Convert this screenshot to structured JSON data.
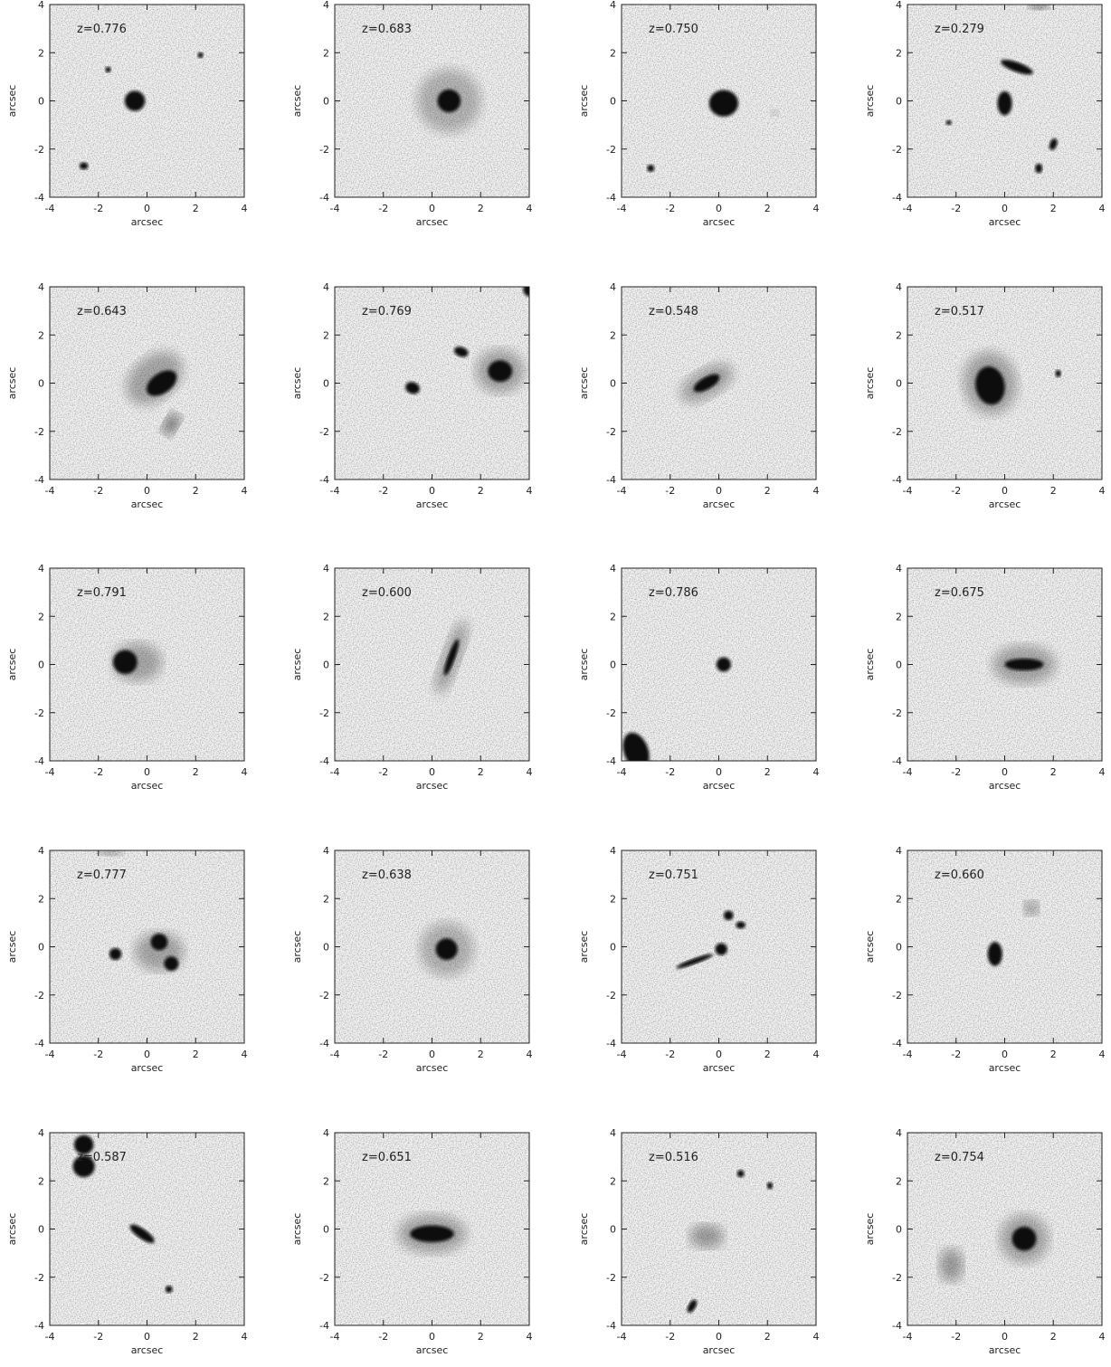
{
  "chart_data": [
    {
      "type": "image",
      "annotation": "z=0.776",
      "xlabel": "arcsec",
      "ylabel": "arcsec",
      "xlim": [
        -4,
        4
      ],
      "ylim": [
        -4,
        4
      ],
      "xticks": [
        -4,
        -2,
        0,
        2,
        4
      ],
      "yticks": [
        -4,
        -2,
        0,
        2,
        4
      ]
    },
    {
      "type": "image",
      "annotation": "z=0.683",
      "xlabel": "arcsec",
      "ylabel": "arcsec",
      "xlim": [
        -4,
        4
      ],
      "ylim": [
        -4,
        4
      ],
      "xticks": [
        -4,
        -2,
        0,
        2,
        4
      ],
      "yticks": [
        -4,
        -2,
        0,
        2,
        4
      ]
    },
    {
      "type": "image",
      "annotation": "z=0.750",
      "xlabel": "arcsec",
      "ylabel": "arcsec",
      "xlim": [
        -4,
        4
      ],
      "ylim": [
        -4,
        4
      ],
      "xticks": [
        -4,
        -2,
        0,
        2,
        4
      ],
      "yticks": [
        -4,
        -2,
        0,
        2,
        4
      ]
    },
    {
      "type": "image",
      "annotation": "z=0.279",
      "xlabel": "arcsec",
      "ylabel": "arcsec",
      "xlim": [
        -4,
        4
      ],
      "ylim": [
        -4,
        4
      ],
      "xticks": [
        -4,
        -2,
        0,
        2,
        4
      ],
      "yticks": [
        -4,
        -2,
        0,
        2,
        4
      ]
    },
    {
      "type": "image",
      "annotation": "z=0.643",
      "xlabel": "arcsec",
      "ylabel": "arcsec",
      "xlim": [
        -4,
        4
      ],
      "ylim": [
        -4,
        4
      ],
      "xticks": [
        -4,
        -2,
        0,
        2,
        4
      ],
      "yticks": [
        -4,
        -2,
        0,
        2,
        4
      ]
    },
    {
      "type": "image",
      "annotation": "z=0.769",
      "xlabel": "arcsec",
      "ylabel": "arcsec",
      "xlim": [
        -4,
        4
      ],
      "ylim": [
        -4,
        4
      ],
      "xticks": [
        -4,
        -2,
        0,
        2,
        4
      ],
      "yticks": [
        -4,
        -2,
        0,
        2,
        4
      ]
    },
    {
      "type": "image",
      "annotation": "z=0.548",
      "xlabel": "arcsec",
      "ylabel": "arcsec",
      "xlim": [
        -4,
        4
      ],
      "ylim": [
        -4,
        4
      ],
      "xticks": [
        -4,
        -2,
        0,
        2,
        4
      ],
      "yticks": [
        -4,
        -2,
        0,
        2,
        4
      ]
    },
    {
      "type": "image",
      "annotation": "z=0.517",
      "xlabel": "arcsec",
      "ylabel": "arcsec",
      "xlim": [
        -4,
        4
      ],
      "ylim": [
        -4,
        4
      ],
      "xticks": [
        -4,
        -2,
        0,
        2,
        4
      ],
      "yticks": [
        -4,
        -2,
        0,
        2,
        4
      ]
    },
    {
      "type": "image",
      "annotation": "z=0.791",
      "xlabel": "arcsec",
      "ylabel": "arcsec",
      "xlim": [
        -4,
        4
      ],
      "ylim": [
        -4,
        4
      ],
      "xticks": [
        -4,
        -2,
        0,
        2,
        4
      ],
      "yticks": [
        -4,
        -2,
        0,
        2,
        4
      ]
    },
    {
      "type": "image",
      "annotation": "z=0.600",
      "xlabel": "arcsec",
      "ylabel": "arcsec",
      "xlim": [
        -4,
        4
      ],
      "ylim": [
        -4,
        4
      ],
      "xticks": [
        -4,
        -2,
        0,
        2,
        4
      ],
      "yticks": [
        -4,
        -2,
        0,
        2,
        4
      ]
    },
    {
      "type": "image",
      "annotation": "z=0.786",
      "xlabel": "arcsec",
      "ylabel": "arcsec",
      "xlim": [
        -4,
        4
      ],
      "ylim": [
        -4,
        4
      ],
      "xticks": [
        -4,
        -2,
        0,
        2,
        4
      ],
      "yticks": [
        -4,
        -2,
        0,
        2,
        4
      ]
    },
    {
      "type": "image",
      "annotation": "z=0.675",
      "xlabel": "arcsec",
      "ylabel": "arcsec",
      "xlim": [
        -4,
        4
      ],
      "ylim": [
        -4,
        4
      ],
      "xticks": [
        -4,
        -2,
        0,
        2,
        4
      ],
      "yticks": [
        -4,
        -2,
        0,
        2,
        4
      ]
    },
    {
      "type": "image",
      "annotation": "z=0.777",
      "xlabel": "arcsec",
      "ylabel": "arcsec",
      "xlim": [
        -4,
        4
      ],
      "ylim": [
        -4,
        4
      ],
      "xticks": [
        -4,
        -2,
        0,
        2,
        4
      ],
      "yticks": [
        -4,
        -2,
        0,
        2,
        4
      ]
    },
    {
      "type": "image",
      "annotation": "z=0.638",
      "xlabel": "arcsec",
      "ylabel": "arcsec",
      "xlim": [
        -4,
        4
      ],
      "ylim": [
        -4,
        4
      ],
      "xticks": [
        -4,
        -2,
        0,
        2,
        4
      ],
      "yticks": [
        -4,
        -2,
        0,
        2,
        4
      ]
    },
    {
      "type": "image",
      "annotation": "z=0.751",
      "xlabel": "arcsec",
      "ylabel": "arcsec",
      "xlim": [
        -4,
        4
      ],
      "ylim": [
        -4,
        4
      ],
      "xticks": [
        -4,
        -2,
        0,
        2,
        4
      ],
      "yticks": [
        -4,
        -2,
        0,
        2,
        4
      ]
    },
    {
      "type": "image",
      "annotation": "z=0.660",
      "xlabel": "arcsec",
      "ylabel": "arcsec",
      "xlim": [
        -4,
        4
      ],
      "ylim": [
        -4,
        4
      ],
      "xticks": [
        -4,
        -2,
        0,
        2,
        4
      ],
      "yticks": [
        -4,
        -2,
        0,
        2,
        4
      ]
    },
    {
      "type": "image",
      "annotation": "z=0.587",
      "xlabel": "arcsec",
      "ylabel": "arcsec",
      "xlim": [
        -4,
        4
      ],
      "ylim": [
        -4,
        4
      ],
      "xticks": [
        -4,
        -2,
        0,
        2,
        4
      ],
      "yticks": [
        -4,
        -2,
        0,
        2,
        4
      ]
    },
    {
      "type": "image",
      "annotation": "z=0.651",
      "xlabel": "arcsec",
      "ylabel": "arcsec",
      "xlim": [
        -4,
        4
      ],
      "ylim": [
        -4,
        4
      ],
      "xticks": [
        -4,
        -2,
        0,
        2,
        4
      ],
      "yticks": [
        -4,
        -2,
        0,
        2,
        4
      ]
    },
    {
      "type": "image",
      "annotation": "z=0.516",
      "xlabel": "arcsec",
      "ylabel": "arcsec",
      "xlim": [
        -4,
        4
      ],
      "ylim": [
        -4,
        4
      ],
      "xticks": [
        -4,
        -2,
        0,
        2,
        4
      ],
      "yticks": [
        -4,
        -2,
        0,
        2,
        4
      ]
    },
    {
      "type": "image",
      "annotation": "z=0.754",
      "xlabel": "arcsec",
      "ylabel": "arcsec",
      "xlim": [
        -4,
        4
      ],
      "ylim": [
        -4,
        4
      ],
      "xticks": [
        -4,
        -2,
        0,
        2,
        4
      ],
      "yticks": [
        -4,
        -2,
        0,
        2,
        4
      ]
    }
  ]
}
